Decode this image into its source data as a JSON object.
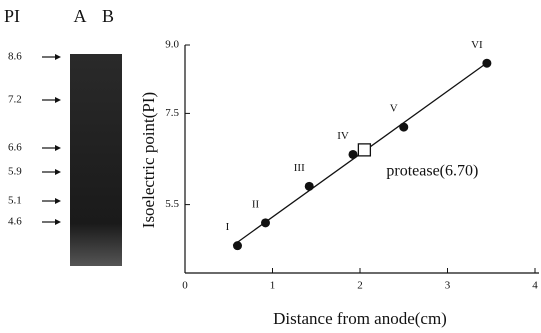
{
  "gel": {
    "header": "PI",
    "lanes": [
      "A",
      "B"
    ],
    "markers": [
      "8.6",
      "7.2",
      "6.6",
      "5.9",
      "5.1",
      "4.6"
    ]
  },
  "chart_data": {
    "type": "scatter",
    "xlabel": "Distance from anode(cm)",
    "ylabel": "Isoelectric point(PI)",
    "x": [
      0.6,
      0.92,
      1.42,
      1.92,
      2.5,
      3.45
    ],
    "values": [
      4.6,
      5.1,
      5.9,
      6.6,
      7.2,
      8.6
    ],
    "point_labels": [
      "I",
      "II",
      "III",
      "IV",
      "V",
      "VI"
    ],
    "annotation": {
      "x": 2.05,
      "y": 6.7,
      "label": "protease(6.70)"
    },
    "xlim": [
      0,
      4
    ],
    "xticks": [
      0,
      1,
      2,
      3,
      4
    ],
    "ylim": [
      4,
      9
    ],
    "yticks": [
      {
        "value": 9,
        "label": "9.0"
      },
      7.5,
      5.5
    ],
    "color": "#111"
  }
}
